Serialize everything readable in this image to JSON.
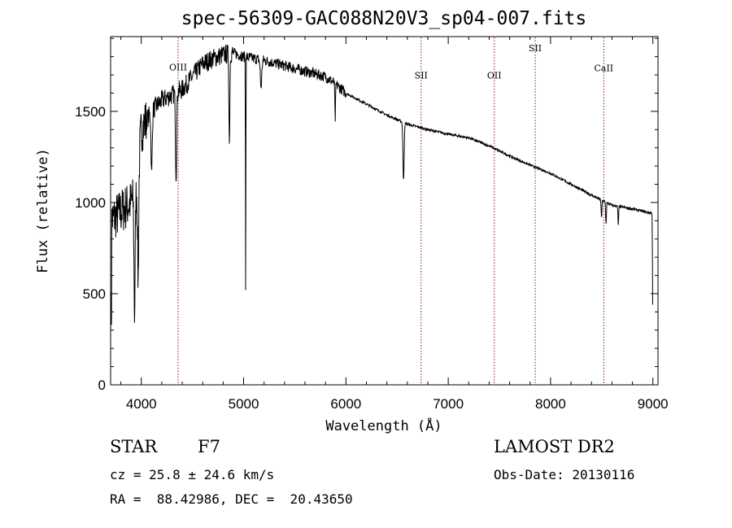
{
  "chart_data": {
    "type": "line",
    "title": "spec-56309-GAC088N20V3_sp04-007.fits",
    "xlabel": "Wavelength (Å)",
    "ylabel": "Flux (relative)",
    "xlim": [
      3700,
      9050
    ],
    "ylim": [
      0,
      1910
    ],
    "xticks": [
      4000,
      5000,
      6000,
      7000,
      8000,
      9000
    ],
    "yticks": [
      0,
      500,
      1000,
      1500
    ],
    "grid": false,
    "line_color": "#000000",
    "continuum": {
      "x": [
        3700,
        3800,
        3900,
        3950,
        4000,
        4100,
        4200,
        4300,
        4400,
        4500,
        4600,
        4700,
        4800,
        4900,
        5000,
        5100,
        5200,
        5400,
        5600,
        5800,
        5900,
        6000,
        6200,
        6400,
        6600,
        6800,
        7000,
        7200,
        7400,
        7600,
        7800,
        8000,
        8200,
        8400,
        8600,
        8800,
        9000
      ],
      "y": [
        900,
        950,
        1000,
        1050,
        1400,
        1500,
        1560,
        1590,
        1620,
        1690,
        1760,
        1790,
        1810,
        1820,
        1800,
        1790,
        1780,
        1750,
        1720,
        1690,
        1650,
        1600,
        1540,
        1480,
        1430,
        1400,
        1375,
        1355,
        1310,
        1255,
        1205,
        1160,
        1100,
        1040,
        985,
        965,
        940
      ]
    },
    "absorption_lines": [
      {
        "x": 3934,
        "depth": 650,
        "width": 8
      },
      {
        "x": 3969,
        "depth": 600,
        "width": 8
      },
      {
        "x": 4101,
        "depth": 350,
        "width": 8
      },
      {
        "x": 4340,
        "depth": 450,
        "width": 8
      },
      {
        "x": 4861,
        "depth": 500,
        "width": 6
      },
      {
        "x": 5020,
        "depth": 1250,
        "width": 3
      },
      {
        "x": 5170,
        "depth": 150,
        "width": 10
      },
      {
        "x": 5895,
        "depth": 200,
        "width": 5
      },
      {
        "x": 6563,
        "depth": 320,
        "width": 8
      },
      {
        "x": 8498,
        "depth": 100,
        "width": 5
      },
      {
        "x": 8542,
        "depth": 120,
        "width": 5
      },
      {
        "x": 8662,
        "depth": 100,
        "width": 5
      },
      {
        "x": 8998,
        "depth": 500,
        "width": 3
      }
    ],
    "annotations": [
      {
        "label": "OIII",
        "x": 4360,
        "y": 1725
      },
      {
        "label": "SII",
        "x": 6735,
        "y": 1680
      },
      {
        "label": "OII",
        "x": 7450,
        "y": 1680
      },
      {
        "label": "SII",
        "x": 7850,
        "y": 1830
      },
      {
        "label": "CaII",
        "x": 8520,
        "y": 1720
      }
    ],
    "annotation_color": "#8b1a1a"
  },
  "info": {
    "object_class": "STAR",
    "subclass": "F7",
    "survey": "LAMOST DR2",
    "cz": "cz = 25.8 ± 24.6 km/s",
    "obs_date": "Obs-Date: 20130116",
    "coords": "RA =  88.42986, DEC =  20.43650"
  }
}
